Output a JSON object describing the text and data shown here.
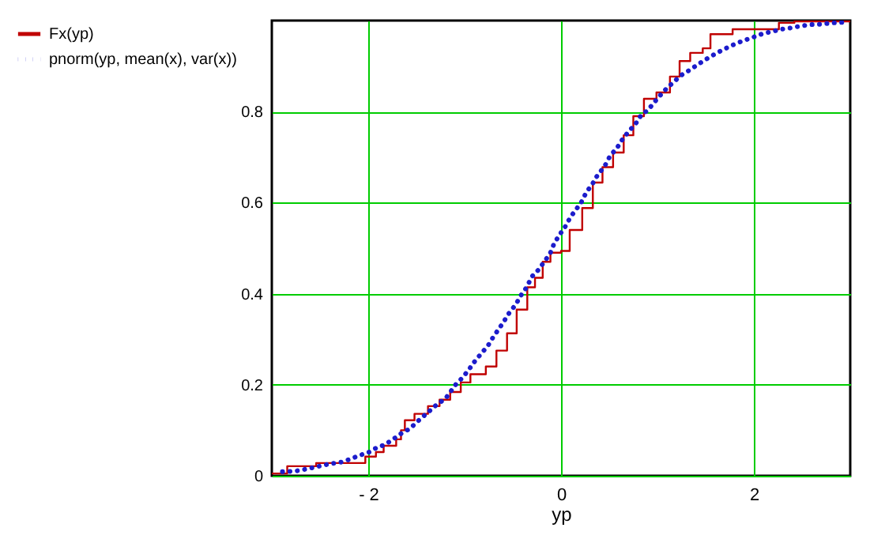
{
  "chart_data": {
    "type": "step",
    "xlabel": "yp",
    "xlim": [
      -3,
      3
    ],
    "xticks": [
      {
        "value": -2,
        "label": "- 2"
      },
      0,
      2
    ],
    "ylim": [
      0,
      1
    ],
    "yticks": [
      0,
      0.2,
      0.4,
      0.6,
      0.8
    ],
    "grid": true,
    "legend": "left",
    "series": [
      {
        "name": "Fx(yp)",
        "color": "#c00000",
        "line_style": "solid",
        "x": [
          -3,
          -2.84,
          -2.54,
          -2.03,
          -1.92,
          -1.84,
          -1.71,
          -1.66,
          -1.62,
          -1.52,
          -1.38,
          -1.26,
          -1.15,
          -1.04,
          -0.94,
          -0.78,
          -0.67,
          -0.56,
          -0.46,
          -0.35,
          -0.27,
          -0.19,
          -0.11,
          0,
          0.09,
          0.22,
          0.33,
          0.43,
          0.54,
          0.65,
          0.75,
          0.86,
          0.99,
          1.13,
          1.23,
          1.34,
          1.47,
          1.55,
          1.78,
          2.26,
          2.42,
          3
        ],
        "values": [
          0.005,
          0.021,
          0.028,
          0.042,
          0.052,
          0.066,
          0.08,
          0.1,
          0.122,
          0.136,
          0.153,
          0.167,
          0.184,
          0.205,
          0.223,
          0.24,
          0.275,
          0.313,
          0.365,
          0.414,
          0.435,
          0.47,
          0.49,
          0.494,
          0.54,
          0.588,
          0.644,
          0.678,
          0.71,
          0.748,
          0.79,
          0.828,
          0.842,
          0.877,
          0.911,
          0.929,
          0.939,
          0.97,
          0.981,
          0.995,
          0.998,
          0.998
        ]
      },
      {
        "name": "pnorm(yp, mean(x), var(x))",
        "type": "line",
        "color": "#1c1ccc",
        "line_style": "dotted",
        "x": [
          -2.89,
          -2.76,
          -2.66,
          -2.57,
          -2.47,
          -2.37,
          -2.28,
          -2.18,
          -2.1,
          -1.99,
          -1.91,
          -1.83,
          -1.75,
          -1.65,
          -1.57,
          -1.49,
          -1.42,
          -1.28,
          -1.2,
          -1.09,
          -1.02,
          -0.96,
          -0.9,
          -0.83,
          -0.76,
          -0.7,
          -0.64,
          -0.59,
          -0.54,
          -0.47,
          -0.42,
          -0.36,
          -0.3,
          -0.24,
          -0.16,
          -0.11,
          -0.07,
          -0.01,
          0.04,
          0.1,
          0.15,
          0.22,
          0.26,
          0.32,
          0.38,
          0.45,
          0.51,
          0.58,
          0.64,
          0.7,
          0.77,
          0.83,
          0.9,
          0.97,
          1.03,
          1.1,
          1.16,
          1.24,
          1.34,
          1.43,
          1.52,
          1.6,
          1.7,
          1.79,
          1.88,
          1.99,
          2.09,
          2.19,
          2.29,
          2.39,
          2.49,
          2.59,
          2.69,
          2.82,
          2.92
        ],
        "values": [
          0.009,
          0.01,
          0.014,
          0.018,
          0.023,
          0.027,
          0.03,
          0.037,
          0.044,
          0.052,
          0.062,
          0.068,
          0.079,
          0.094,
          0.103,
          0.119,
          0.132,
          0.158,
          0.169,
          0.201,
          0.216,
          0.232,
          0.25,
          0.268,
          0.285,
          0.306,
          0.324,
          0.34,
          0.357,
          0.376,
          0.395,
          0.413,
          0.438,
          0.451,
          0.474,
          0.49,
          0.511,
          0.531,
          0.546,
          0.569,
          0.583,
          0.604,
          0.622,
          0.639,
          0.661,
          0.679,
          0.703,
          0.72,
          0.74,
          0.756,
          0.772,
          0.792,
          0.803,
          0.821,
          0.836,
          0.852,
          0.863,
          0.879,
          0.892,
          0.905,
          0.917,
          0.927,
          0.938,
          0.947,
          0.955,
          0.963,
          0.971,
          0.976,
          0.981,
          0.984,
          0.988,
          0.991,
          0.992,
          0.995,
          0.996
        ]
      }
    ]
  }
}
